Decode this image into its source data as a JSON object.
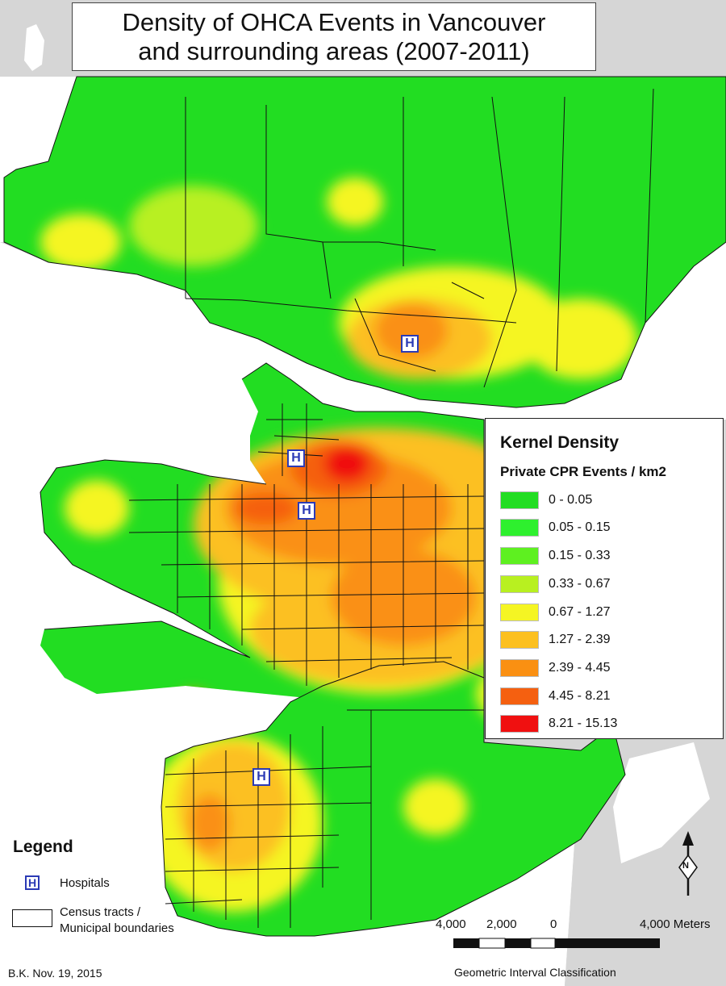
{
  "title": {
    "line1": "Density of OHCA Events in Vancouver",
    "line2": "and surrounding areas (2007-2011)"
  },
  "density_legend": {
    "title": "Kernel Density",
    "subtitle": "Private CPR Events / km2",
    "classes": [
      {
        "label": "0 - 0.05",
        "color": "#22dd22"
      },
      {
        "label": "0.05 - 0.15",
        "color": "#2ef02e"
      },
      {
        "label": "0.15 - 0.33",
        "color": "#5ef020"
      },
      {
        "label": "0.33 - 0.67",
        "color": "#b8f020"
      },
      {
        "label": "0.67 - 1.27",
        "color": "#f5f523"
      },
      {
        "label": "1.27 - 2.39",
        "color": "#fcc020"
      },
      {
        "label": "2.39 - 4.45",
        "color": "#fa9012"
      },
      {
        "label": "4.45 - 8.21",
        "color": "#f56010"
      },
      {
        "label": "8.21 - 15.13",
        "color": "#f01010"
      }
    ]
  },
  "map_legend": {
    "title": "Legend",
    "hospital_symbol": "H",
    "hospitals_label": "Hospitals",
    "boundaries_line1": "Census tracts /",
    "boundaries_line2": "Municipal boundaries"
  },
  "hospital_marker": "H",
  "scale_bar": {
    "labels": [
      "4,000",
      "2,000",
      "0",
      "4,000 Meters"
    ]
  },
  "classification": "Geometric Interval Classification",
  "credit": "B.K. Nov. 19, 2015",
  "north_arrow_letter": "N",
  "colors": {
    "water": "#ffffff",
    "land_outside": "#d6d6d6",
    "boundary": "#111111",
    "hospital": "#2b3ab5"
  }
}
